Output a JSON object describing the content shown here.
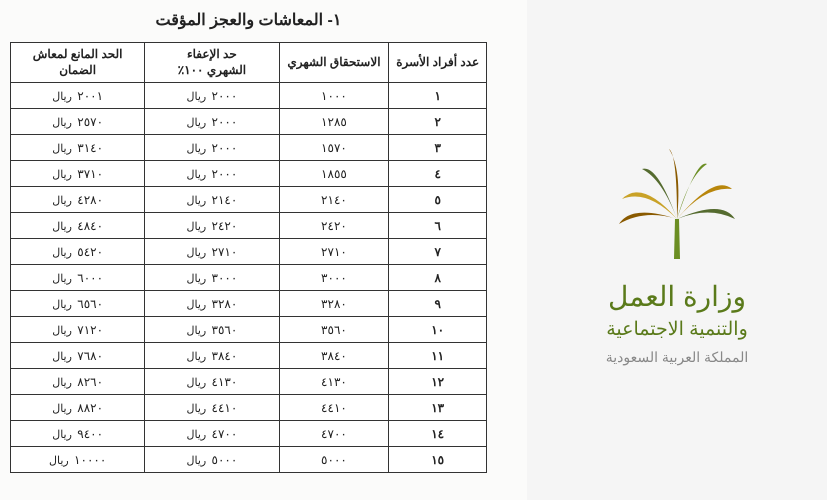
{
  "logo": {
    "ministry_line1": "وزارة العمل",
    "ministry_line2": "والتنمية الاجتماعية",
    "country": "المملكة العربية السعودية",
    "palm_colors": [
      "#c9a227",
      "#6b8e23",
      "#8a5a00",
      "#556b2f",
      "#b8860b"
    ]
  },
  "table": {
    "section_title": "١-  المعاشات والعجز المؤقت",
    "currency": "ريال",
    "columns": {
      "family": "عدد أفراد الأسرة",
      "monthly": "الاستحقاق الشهري",
      "exempt_l1": "حد الإعفاء",
      "exempt_l2": "الشهري ١٠٠٪",
      "limit_l1": "الحد المانع لمعاش",
      "limit_l2": "الضمان"
    },
    "rows": [
      {
        "n": "١",
        "monthly": "١٠٠٠",
        "exempt": "٢٠٠٠",
        "limit": "٢٠٠١"
      },
      {
        "n": "٢",
        "monthly": "١٢٨٥",
        "exempt": "٢٠٠٠",
        "limit": "٢٥٧٠"
      },
      {
        "n": "٣",
        "monthly": "١٥٧٠",
        "exempt": "٢٠٠٠",
        "limit": "٣١٤٠"
      },
      {
        "n": "٤",
        "monthly": "١٨٥٥",
        "exempt": "٢٠٠٠",
        "limit": "٣٧١٠"
      },
      {
        "n": "٥",
        "monthly": "٢١٤٠",
        "exempt": "٢١٤٠",
        "limit": "٤٢٨٠"
      },
      {
        "n": "٦",
        "monthly": "٢٤٢٠",
        "exempt": "٢٤٢٠",
        "limit": "٤٨٤٠"
      },
      {
        "n": "٧",
        "monthly": "٢٧١٠",
        "exempt": "٢٧١٠",
        "limit": "٥٤٢٠"
      },
      {
        "n": "٨",
        "monthly": "٣٠٠٠",
        "exempt": "٣٠٠٠",
        "limit": "٦٠٠٠"
      },
      {
        "n": "٩",
        "monthly": "٣٢٨٠",
        "exempt": "٣٢٨٠",
        "limit": "٦٥٦٠"
      },
      {
        "n": "١٠",
        "monthly": "٣٥٦٠",
        "exempt": "٣٥٦٠",
        "limit": "٧١٢٠"
      },
      {
        "n": "١١",
        "monthly": "٣٨٤٠",
        "exempt": "٣٨٤٠",
        "limit": "٧٦٨٠"
      },
      {
        "n": "١٢",
        "monthly": "٤١٣٠",
        "exempt": "٤١٣٠",
        "limit": "٨٢٦٠"
      },
      {
        "n": "١٣",
        "monthly": "٤٤١٠",
        "exempt": "٤٤١٠",
        "limit": "٨٨٢٠"
      },
      {
        "n": "١٤",
        "monthly": "٤٧٠٠",
        "exempt": "٤٧٠٠",
        "limit": "٩٤٠٠"
      },
      {
        "n": "١٥",
        "monthly": "٥٠٠٠",
        "exempt": "٥٠٠٠",
        "limit": "١٠٠٠٠"
      }
    ]
  }
}
